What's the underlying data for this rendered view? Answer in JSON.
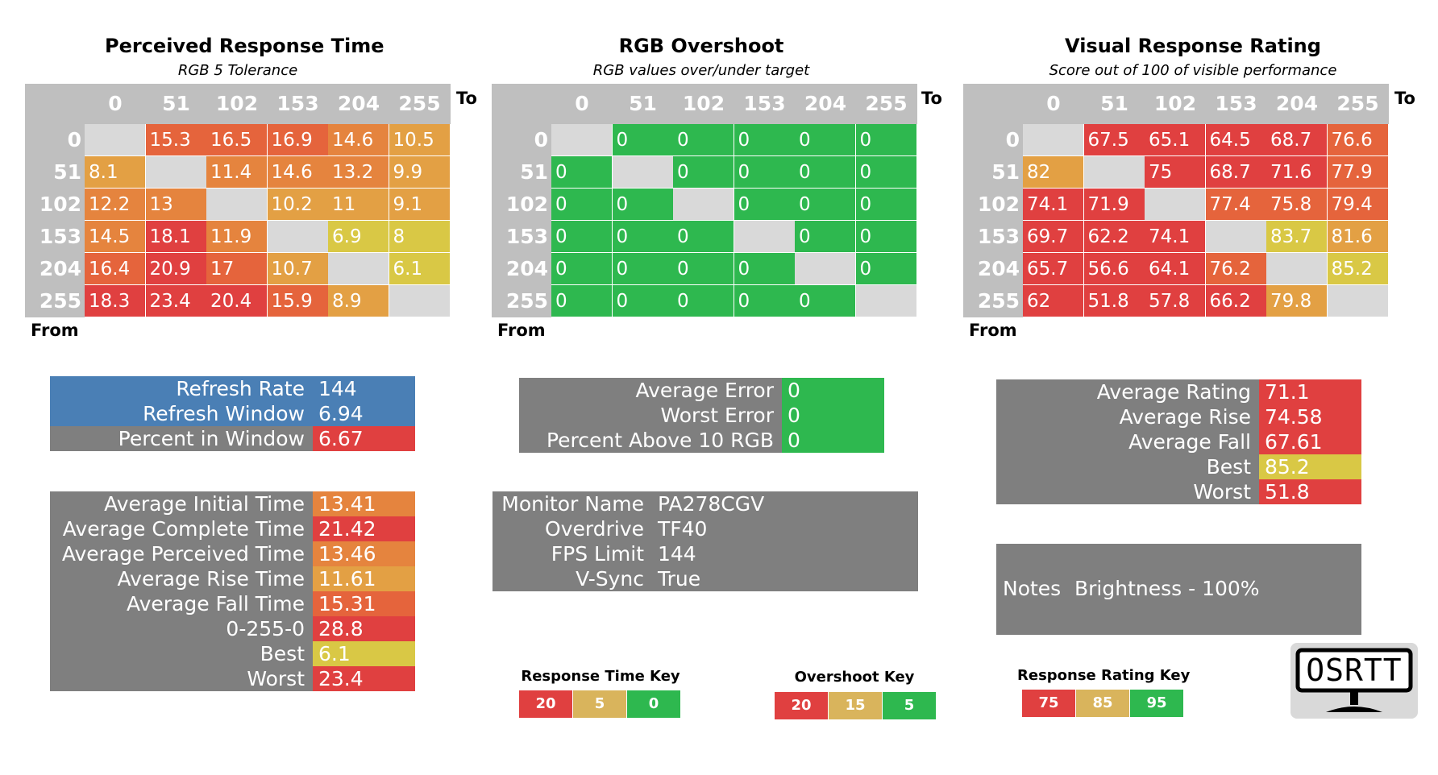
{
  "colors": {
    "gray": "#7f7f7f",
    "diag": "#d9d9d9",
    "header": "#bfbfbf",
    "blue": "#4a7fb5",
    "red": "#e04040",
    "redorange": "#e5643c",
    "orange": "#e5843e",
    "gold": "#e3a044",
    "yellow": "#d9c845",
    "green": "#2eb84f",
    "key_gold": "#d9b45c"
  },
  "chart_data": [
    {
      "type": "heatmap",
      "title": "Perceived Response Time",
      "subtitle": "RGB 5 Tolerance",
      "xlabel": "To",
      "ylabel": "From",
      "x": [
        "0",
        "51",
        "102",
        "153",
        "204",
        "255"
      ],
      "y": [
        "0",
        "51",
        "102",
        "153",
        "204",
        "255"
      ],
      "values": [
        [
          null,
          "15.3",
          "16.5",
          "16.9",
          "14.6",
          "10.5"
        ],
        [
          "8.1",
          null,
          "11.4",
          "14.6",
          "13.2",
          "9.9"
        ],
        [
          "12.2",
          "13",
          null,
          "10.2",
          "11",
          "9.1"
        ],
        [
          "14.5",
          "18.1",
          "11.9",
          null,
          "6.9",
          "8"
        ],
        [
          "16.4",
          "20.9",
          "17",
          "10.7",
          null,
          "6.1"
        ],
        [
          "18.3",
          "23.4",
          "20.4",
          "15.9",
          "8.9",
          null
        ]
      ],
      "cell_colors": [
        [
          null,
          "redorange",
          "redorange",
          "redorange",
          "orange",
          "gold"
        ],
        [
          "gold",
          null,
          "orange",
          "orange",
          "orange",
          "gold"
        ],
        [
          "orange",
          "orange",
          null,
          "gold",
          "gold",
          "gold"
        ],
        [
          "orange",
          "red",
          "orange",
          null,
          "yellow",
          "yellow"
        ],
        [
          "redorange",
          "red",
          "redorange",
          "gold",
          null,
          "yellow"
        ],
        [
          "red",
          "red",
          "red",
          "redorange",
          "gold",
          null
        ]
      ]
    },
    {
      "type": "heatmap",
      "title": "RGB Overshoot",
      "subtitle": "RGB values over/under target",
      "xlabel": "To",
      "ylabel": "From",
      "x": [
        "0",
        "51",
        "102",
        "153",
        "204",
        "255"
      ],
      "y": [
        "0",
        "51",
        "102",
        "153",
        "204",
        "255"
      ],
      "values": [
        [
          null,
          "0",
          "0",
          "0",
          "0",
          "0"
        ],
        [
          "0",
          null,
          "0",
          "0",
          "0",
          "0"
        ],
        [
          "0",
          "0",
          null,
          "0",
          "0",
          "0"
        ],
        [
          "0",
          "0",
          "0",
          null,
          "0",
          "0"
        ],
        [
          "0",
          "0",
          "0",
          "0",
          null,
          "0"
        ],
        [
          "0",
          "0",
          "0",
          "0",
          "0",
          null
        ]
      ],
      "cell_colors": [
        [
          null,
          "green",
          "green",
          "green",
          "green",
          "green"
        ],
        [
          "green",
          null,
          "green",
          "green",
          "green",
          "green"
        ],
        [
          "green",
          "green",
          null,
          "green",
          "green",
          "green"
        ],
        [
          "green",
          "green",
          "green",
          null,
          "green",
          "green"
        ],
        [
          "green",
          "green",
          "green",
          "green",
          null,
          "green"
        ],
        [
          "green",
          "green",
          "green",
          "green",
          "green",
          null
        ]
      ]
    },
    {
      "type": "heatmap",
      "title": "Visual Response Rating",
      "subtitle": "Score out of 100 of visible performance",
      "xlabel": "To",
      "ylabel": "From",
      "x": [
        "0",
        "51",
        "102",
        "153",
        "204",
        "255"
      ],
      "y": [
        "0",
        "51",
        "102",
        "153",
        "204",
        "255"
      ],
      "values": [
        [
          null,
          "67.5",
          "65.1",
          "64.5",
          "68.7",
          "76.6"
        ],
        [
          "82",
          null,
          "75",
          "68.7",
          "71.6",
          "77.9"
        ],
        [
          "74.1",
          "71.9",
          null,
          "77.4",
          "75.8",
          "79.4"
        ],
        [
          "69.7",
          "62.2",
          "74.1",
          null,
          "83.7",
          "81.6"
        ],
        [
          "65.7",
          "56.6",
          "64.1",
          "76.2",
          null,
          "85.2"
        ],
        [
          "62",
          "51.8",
          "57.8",
          "66.2",
          "79.8",
          null
        ]
      ],
      "cell_colors": [
        [
          null,
          "red",
          "red",
          "red",
          "red",
          "redorange"
        ],
        [
          "gold",
          null,
          "red",
          "red",
          "red",
          "redorange"
        ],
        [
          "red",
          "red",
          null,
          "redorange",
          "redorange",
          "redorange"
        ],
        [
          "red",
          "red",
          "red",
          null,
          "yellow",
          "gold"
        ],
        [
          "red",
          "red",
          "red",
          "redorange",
          null,
          "yellow"
        ],
        [
          "red",
          "red",
          "red",
          "red",
          "gold",
          null
        ]
      ]
    }
  ],
  "refresh_block": [
    {
      "label": "Refresh Rate",
      "value": "144",
      "label_color": "blue",
      "value_color": "blue"
    },
    {
      "label": "Refresh Window",
      "value": "6.94",
      "label_color": "blue",
      "value_color": "blue"
    },
    {
      "label": "Percent in Window",
      "value": "6.67",
      "label_color": "gray",
      "value_color": "red"
    }
  ],
  "timing_block": [
    {
      "label": "Average Initial Time",
      "value": "13.41",
      "label_color": "gray",
      "value_color": "orange"
    },
    {
      "label": "Average Complete Time",
      "value": "21.42",
      "label_color": "gray",
      "value_color": "red"
    },
    {
      "label": "Average Perceived Time",
      "value": "13.46",
      "label_color": "gray",
      "value_color": "orange"
    },
    {
      "label": "Average Rise Time",
      "value": "11.61",
      "label_color": "gray",
      "value_color": "gold"
    },
    {
      "label": "Average Fall Time",
      "value": "15.31",
      "label_color": "gray",
      "value_color": "redorange"
    },
    {
      "label": "0-255-0",
      "value": "28.8",
      "label_color": "gray",
      "value_color": "red"
    },
    {
      "label": "Best",
      "value": "6.1",
      "label_color": "gray",
      "value_color": "yellow"
    },
    {
      "label": "Worst",
      "value": "23.4",
      "label_color": "gray",
      "value_color": "red"
    }
  ],
  "error_block": [
    {
      "label": "Average Error",
      "value": "0",
      "label_color": "gray",
      "value_color": "green"
    },
    {
      "label": "Worst Error",
      "value": "0",
      "label_color": "gray",
      "value_color": "green"
    },
    {
      "label": "Percent Above 10 RGB",
      "value": "0",
      "label_color": "gray",
      "value_color": "green"
    }
  ],
  "monitor_block": [
    {
      "label": "Monitor Name",
      "value": "PA278CGV",
      "label_color": "gray",
      "value_color": "gray"
    },
    {
      "label": "Overdrive",
      "value": "TF40",
      "label_color": "gray",
      "value_color": "gray"
    },
    {
      "label": "FPS Limit",
      "value": "144",
      "label_color": "gray",
      "value_color": "gray"
    },
    {
      "label": "V-Sync",
      "value": "True",
      "label_color": "gray",
      "value_color": "gray"
    }
  ],
  "rating_block": [
    {
      "label": "Average Rating",
      "value": "71.1",
      "label_color": "gray",
      "value_color": "red"
    },
    {
      "label": "Average Rise",
      "value": "74.58",
      "label_color": "gray",
      "value_color": "red"
    },
    {
      "label": "Average Fall",
      "value": "67.61",
      "label_color": "gray",
      "value_color": "red"
    },
    {
      "label": "Best",
      "value": "85.2",
      "label_color": "gray",
      "value_color": "yellow"
    },
    {
      "label": "Worst",
      "value": "51.8",
      "label_color": "gray",
      "value_color": "red"
    }
  ],
  "notes": {
    "label": "Notes",
    "value": "Brightness - 100%"
  },
  "keys": [
    {
      "title": "Response Time Key",
      "items": [
        {
          "text": "20",
          "color": "red"
        },
        {
          "text": "5",
          "color": "key_gold"
        },
        {
          "text": "0",
          "color": "green"
        }
      ]
    },
    {
      "title": "Overshoot Key",
      "items": [
        {
          "text": "20",
          "color": "red"
        },
        {
          "text": "15",
          "color": "key_gold"
        },
        {
          "text": "5",
          "color": "green"
        }
      ]
    },
    {
      "title": "Response Rating Key",
      "items": [
        {
          "text": "75",
          "color": "red"
        },
        {
          "text": "85",
          "color": "key_gold"
        },
        {
          "text": "95",
          "color": "green"
        }
      ]
    }
  ],
  "logo": {
    "text": "OSRTT",
    "icon": "monitor-icon"
  }
}
